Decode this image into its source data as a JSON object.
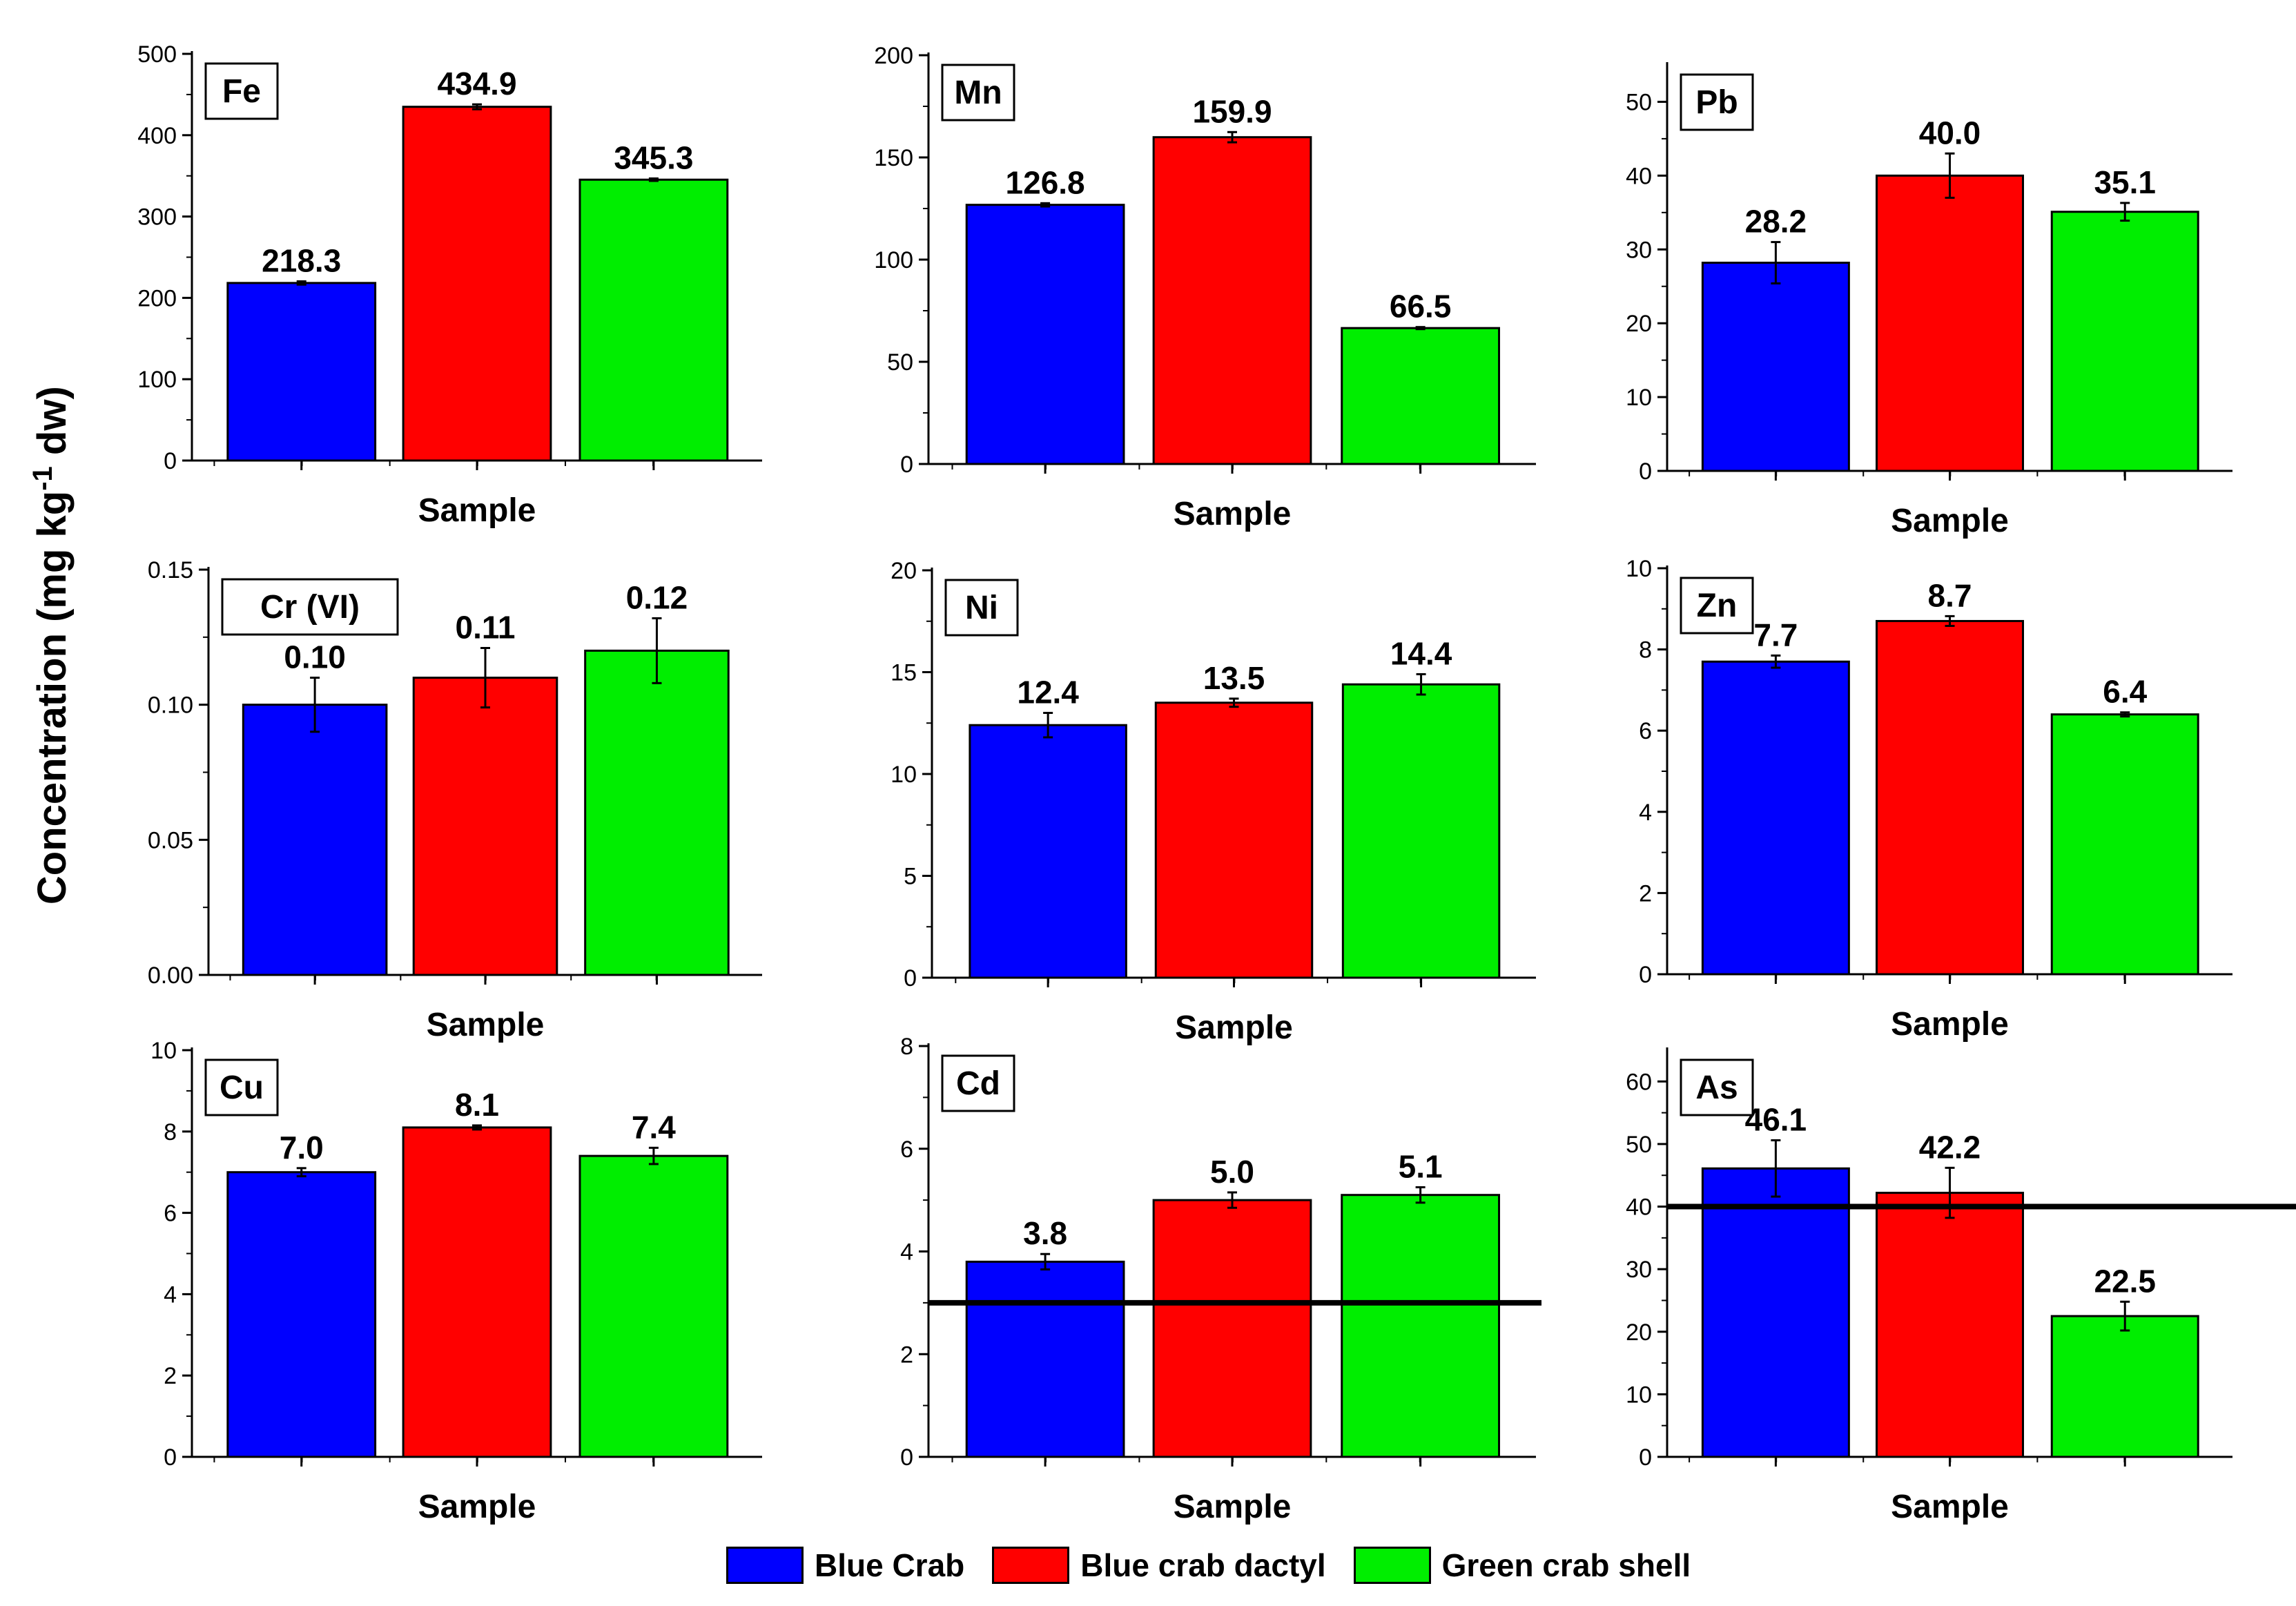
{
  "figure": {
    "y_axis_label_main": "Concentration  (mg kg",
    "y_axis_label_sup": "-1",
    "y_axis_label_tail": " dw)",
    "legend": [
      {
        "label": "Blue Crab",
        "color": "#0000ff"
      },
      {
        "label": "Blue crab dactyl",
        "color": "#ff0000"
      },
      {
        "label": "Green crab shell",
        "color": "#00ee00"
      }
    ]
  },
  "chart_data": [
    {
      "type": "bar",
      "title": "Fe",
      "xlabel": "Sample",
      "ylabel": "",
      "categories": [
        "Blue Crab",
        "Blue crab dactyl",
        "Green crab shell"
      ],
      "values": [
        218.3,
        434.9,
        345.3
      ],
      "errors": [
        2,
        3,
        1.5
      ],
      "labels": [
        "218.3",
        "434.9",
        "345.3"
      ],
      "ylim": [
        0,
        500
      ],
      "yticks": [
        0,
        100,
        200,
        300,
        400,
        500
      ],
      "ytick_labels": [
        "0",
        "100",
        "200",
        "300",
        "400",
        "500"
      ],
      "reference_line": null
    },
    {
      "type": "bar",
      "title": "Mn",
      "xlabel": "Sample",
      "ylabel": "",
      "categories": [
        "Blue Crab",
        "Blue crab dactyl",
        "Green crab shell"
      ],
      "values": [
        126.8,
        159.9,
        66.5
      ],
      "errors": [
        0.8,
        2.5,
        0.5
      ],
      "labels": [
        "126.8",
        "159.9",
        "66.5"
      ],
      "ylim": [
        0,
        200
      ],
      "yticks": [
        0,
        50,
        100,
        150,
        200
      ],
      "ytick_labels": [
        "0",
        "50",
        "100",
        "150",
        "200"
      ],
      "reference_line": null
    },
    {
      "type": "bar",
      "title": "Pb",
      "xlabel": "Sample",
      "ylabel": "",
      "categories": [
        "Blue Crab",
        "Blue crab dactyl",
        "Green crab shell"
      ],
      "values": [
        28.2,
        40.0,
        35.1
      ],
      "errors": [
        2.8,
        3.0,
        1.2
      ],
      "labels": [
        "28.2",
        "40.0",
        "35.1"
      ],
      "ylim": [
        0,
        55
      ],
      "yticks": [
        0,
        10,
        20,
        30,
        40,
        50
      ],
      "ytick_labels": [
        "0",
        "10",
        "20",
        "30",
        "40",
        "50"
      ],
      "reference_line": null
    },
    {
      "type": "bar",
      "title": "Cr (VI)",
      "xlabel": "Sample",
      "ylabel": "",
      "categories": [
        "Blue Crab",
        "Blue crab dactyl",
        "Green crab shell"
      ],
      "values": [
        0.1,
        0.11,
        0.12
      ],
      "errors": [
        0.01,
        0.011,
        0.012
      ],
      "labels": [
        "0.10",
        "0.11",
        "0.12"
      ],
      "ylim": [
        0,
        0.15
      ],
      "yticks": [
        0,
        0.05,
        0.1,
        0.15
      ],
      "ytick_labels": [
        "0.00",
        "0.05",
        "0.10",
        "0.15"
      ],
      "reference_line": null
    },
    {
      "type": "bar",
      "title": "Ni",
      "xlabel": "Sample",
      "ylabel": "",
      "categories": [
        "Blue Crab",
        "Blue crab dactyl",
        "Green crab shell"
      ],
      "values": [
        12.4,
        13.5,
        14.4
      ],
      "errors": [
        0.6,
        0.2,
        0.5
      ],
      "labels": [
        "12.4",
        "13.5",
        "14.4"
      ],
      "ylim": [
        0,
        20
      ],
      "yticks": [
        0,
        5,
        10,
        15,
        20
      ],
      "ytick_labels": [
        "0",
        "5",
        "10",
        "15",
        "20"
      ],
      "reference_line": null
    },
    {
      "type": "bar",
      "title": "Zn",
      "xlabel": "Sample",
      "ylabel": "",
      "categories": [
        "Blue Crab",
        "Blue crab dactyl",
        "Green crab shell"
      ],
      "values": [
        7.7,
        8.7,
        6.4
      ],
      "errors": [
        0.15,
        0.12,
        0.05
      ],
      "labels": [
        "7.7",
        "8.7",
        "6.4"
      ],
      "ylim": [
        0,
        10
      ],
      "yticks": [
        0,
        2,
        4,
        6,
        8,
        10
      ],
      "ytick_labels": [
        "0",
        "2",
        "4",
        "6",
        "8",
        "10"
      ],
      "reference_line": null
    },
    {
      "type": "bar",
      "title": "Cu",
      "xlabel": "Sample",
      "ylabel": "",
      "categories": [
        "Blue Crab",
        "Blue crab dactyl",
        "Green crab shell"
      ],
      "values": [
        7.0,
        8.1,
        7.4
      ],
      "errors": [
        0.1,
        0.05,
        0.2
      ],
      "labels": [
        "7.0",
        "8.1",
        "7.4"
      ],
      "ylim": [
        0,
        10
      ],
      "yticks": [
        0,
        2,
        4,
        6,
        8,
        10
      ],
      "ytick_labels": [
        "0",
        "2",
        "4",
        "6",
        "8",
        "10"
      ],
      "reference_line": null
    },
    {
      "type": "bar",
      "title": "Cd",
      "xlabel": "Sample",
      "ylabel": "",
      "categories": [
        "Blue Crab",
        "Blue crab dactyl",
        "Green crab shell"
      ],
      "values": [
        3.8,
        5.0,
        5.1
      ],
      "errors": [
        0.15,
        0.15,
        0.15
      ],
      "labels": [
        "3.8",
        "5.0",
        "5.1"
      ],
      "ylim": [
        0,
        8
      ],
      "yticks": [
        0,
        2,
        4,
        6,
        8
      ],
      "ytick_labels": [
        "0",
        "2",
        "4",
        "6",
        "8"
      ],
      "reference_line": 3.0
    },
    {
      "type": "bar",
      "title": "As",
      "xlabel": "Sample",
      "ylabel": "",
      "categories": [
        "Blue Crab",
        "Blue crab dactyl",
        "Green crab shell"
      ],
      "values": [
        46.1,
        42.2,
        22.5
      ],
      "errors": [
        4.5,
        4.0,
        2.3
      ],
      "labels": [
        "46.1",
        "42.2",
        "22.5"
      ],
      "ylim": [
        0,
        65
      ],
      "yticks": [
        0,
        10,
        20,
        30,
        40,
        50,
        60
      ],
      "ytick_labels": [
        "0",
        "10",
        "20",
        "30",
        "40",
        "50",
        "60"
      ],
      "reference_line": 40.0
    }
  ]
}
